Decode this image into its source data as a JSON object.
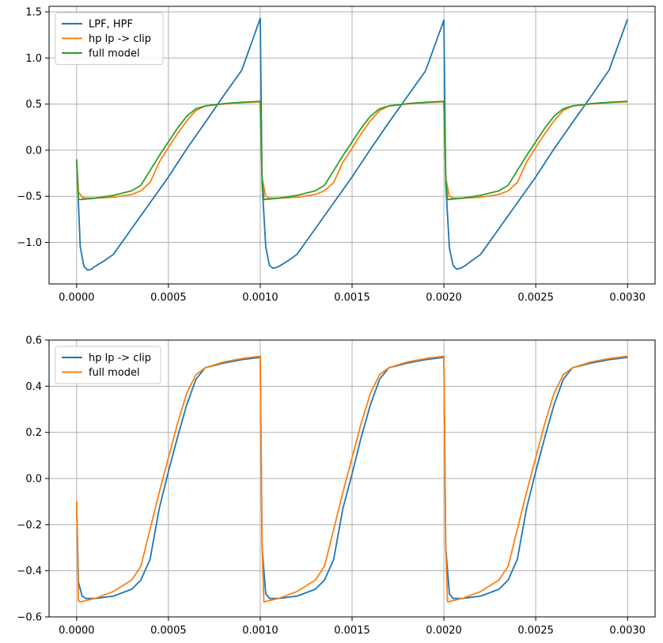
{
  "chart_data": [
    {
      "type": "line",
      "title": "",
      "xlabel": "",
      "ylabel": "",
      "xlim": [
        -0.00015,
        0.00315
      ],
      "ylim": [
        -1.45,
        1.56
      ],
      "xticks": [
        "0.0000",
        "0.0005",
        "0.0010",
        "0.0015",
        "0.0020",
        "0.0025",
        "0.0030"
      ],
      "yticks": [
        "−1.0",
        "−0.5",
        "0.0",
        "0.5",
        "1.0",
        "1.5"
      ],
      "grid": true,
      "legend_position": "upper-left",
      "series": [
        {
          "name": "LPF, HPF",
          "color": "#1f77b4",
          "x": [
            0.0,
            2e-05,
            4e-05,
            6e-05,
            8e-05,
            0.0001,
            0.00015,
            0.0002,
            0.0003,
            0.0004,
            0.0005,
            0.0006,
            0.0007,
            0.0008,
            0.0009,
            0.001,
            0.00101,
            0.00103,
            0.00105,
            0.00107,
            0.00109,
            0.00111,
            0.00115,
            0.0012,
            0.0013,
            0.0014,
            0.0015,
            0.0016,
            0.0017,
            0.0018,
            0.0019,
            0.002,
            0.00201,
            0.00203,
            0.00205,
            0.00207,
            0.00209,
            0.00211,
            0.00215,
            0.0022,
            0.0023,
            0.0024,
            0.0025,
            0.0026,
            0.0027,
            0.0028,
            0.0029,
            0.003
          ],
          "values": [
            -0.1,
            -1.05,
            -1.26,
            -1.3,
            -1.29,
            -1.26,
            -1.2,
            -1.13,
            -0.85,
            -0.57,
            -0.29,
            0.015,
            0.3,
            0.59,
            0.87,
            1.43,
            -0.35,
            -1.05,
            -1.25,
            -1.28,
            -1.27,
            -1.25,
            -1.2,
            -1.13,
            -0.85,
            -0.57,
            -0.29,
            0.01,
            0.3,
            0.58,
            0.86,
            1.41,
            -0.36,
            -1.06,
            -1.25,
            -1.29,
            -1.28,
            -1.26,
            -1.2,
            -1.13,
            -0.85,
            -0.57,
            -0.29,
            0.015,
            0.3,
            0.58,
            0.87,
            1.42
          ]
        },
        {
          "name": "hp lp -> clip",
          "color": "#ff7f0e",
          "x": [
            0.0,
            1e-05,
            3e-05,
            5e-05,
            0.0001,
            0.0002,
            0.0003,
            0.00035,
            0.0004,
            0.00045,
            0.0005,
            0.00055,
            0.0006,
            0.00065,
            0.0007,
            0.0008,
            0.0009,
            0.001,
            0.00101,
            0.00103,
            0.00105,
            0.0011,
            0.0012,
            0.0013,
            0.00135,
            0.0014,
            0.00145,
            0.0015,
            0.00155,
            0.0016,
            0.00165,
            0.0017,
            0.0018,
            0.0019,
            0.002,
            0.00201,
            0.00203,
            0.00205,
            0.0021,
            0.0022,
            0.0023,
            0.00235,
            0.0024,
            0.00245,
            0.0025,
            0.00255,
            0.0026,
            0.00265,
            0.0027,
            0.0028,
            0.0029,
            0.003
          ],
          "values": [
            -0.1,
            -0.45,
            -0.51,
            -0.52,
            -0.52,
            -0.51,
            -0.48,
            -0.44,
            -0.35,
            -0.13,
            0.03,
            0.18,
            0.32,
            0.43,
            0.48,
            0.5,
            0.515,
            0.525,
            -0.3,
            -0.5,
            -0.52,
            -0.52,
            -0.51,
            -0.48,
            -0.44,
            -0.35,
            -0.13,
            0.02,
            0.18,
            0.32,
            0.43,
            0.48,
            0.5,
            0.515,
            0.525,
            -0.3,
            -0.5,
            -0.52,
            -0.52,
            -0.51,
            -0.48,
            -0.44,
            -0.35,
            -0.13,
            0.03,
            0.18,
            0.32,
            0.43,
            0.48,
            0.5,
            0.515,
            0.525
          ]
        },
        {
          "name": "full model",
          "color": "#2ca02c",
          "x": [
            0.0,
            1e-05,
            2e-05,
            0.0001,
            0.0002,
            0.0003,
            0.00035,
            0.0004,
            0.00045,
            0.0005,
            0.00055,
            0.0006,
            0.00065,
            0.0007,
            0.0008,
            0.0009,
            0.001,
            0.00101,
            0.00102,
            0.0011,
            0.0012,
            0.0013,
            0.00135,
            0.0014,
            0.00145,
            0.0015,
            0.00155,
            0.0016,
            0.00165,
            0.0017,
            0.0018,
            0.0019,
            0.002,
            0.00201,
            0.00202,
            0.0021,
            0.0022,
            0.0023,
            0.00235,
            0.0024,
            0.00245,
            0.0025,
            0.00255,
            0.0026,
            0.00265,
            0.0027,
            0.0028,
            0.0029,
            0.003
          ],
          "values": [
            -0.1,
            -0.53,
            -0.535,
            -0.52,
            -0.49,
            -0.44,
            -0.38,
            -0.22,
            -0.06,
            0.09,
            0.24,
            0.37,
            0.45,
            0.48,
            0.505,
            0.52,
            0.53,
            -0.3,
            -0.535,
            -0.52,
            -0.49,
            -0.44,
            -0.38,
            -0.22,
            -0.06,
            0.09,
            0.24,
            0.37,
            0.45,
            0.48,
            0.505,
            0.52,
            0.53,
            -0.3,
            -0.535,
            -0.52,
            -0.49,
            -0.44,
            -0.38,
            -0.22,
            -0.06,
            0.09,
            0.24,
            0.37,
            0.45,
            0.48,
            0.505,
            0.52,
            0.53
          ]
        }
      ]
    },
    {
      "type": "line",
      "title": "",
      "xlabel": "",
      "ylabel": "",
      "xlim": [
        -0.00015,
        0.00315
      ],
      "ylim": [
        -0.6,
        0.6
      ],
      "xticks": [
        "0.0000",
        "0.0005",
        "0.0010",
        "0.0015",
        "0.0020",
        "0.0025",
        "0.0030"
      ],
      "yticks": [
        "−0.6",
        "−0.4",
        "−0.2",
        "0.0",
        "0.2",
        "0.4",
        "0.6"
      ],
      "grid": true,
      "legend_position": "upper-left",
      "series": [
        {
          "name": "hp lp -> clip",
          "color": "#1f77b4",
          "x": [
            0.0,
            1e-05,
            3e-05,
            5e-05,
            0.0001,
            0.0002,
            0.0003,
            0.00035,
            0.0004,
            0.00045,
            0.0005,
            0.00055,
            0.0006,
            0.00065,
            0.0007,
            0.0008,
            0.0009,
            0.001,
            0.00101,
            0.00103,
            0.00105,
            0.0011,
            0.0012,
            0.0013,
            0.00135,
            0.0014,
            0.00145,
            0.0015,
            0.00155,
            0.0016,
            0.00165,
            0.0017,
            0.0018,
            0.0019,
            0.002,
            0.00201,
            0.00203,
            0.00205,
            0.0021,
            0.0022,
            0.0023,
            0.00235,
            0.0024,
            0.00245,
            0.0025,
            0.00255,
            0.0026,
            0.00265,
            0.0027,
            0.0028,
            0.0029,
            0.003
          ],
          "values": [
            -0.1,
            -0.45,
            -0.51,
            -0.52,
            -0.52,
            -0.51,
            -0.48,
            -0.44,
            -0.35,
            -0.13,
            0.03,
            0.18,
            0.32,
            0.43,
            0.48,
            0.5,
            0.515,
            0.525,
            -0.3,
            -0.5,
            -0.52,
            -0.52,
            -0.51,
            -0.48,
            -0.44,
            -0.35,
            -0.13,
            0.02,
            0.18,
            0.32,
            0.43,
            0.48,
            0.5,
            0.515,
            0.525,
            -0.3,
            -0.5,
            -0.52,
            -0.52,
            -0.51,
            -0.48,
            -0.44,
            -0.35,
            -0.13,
            0.03,
            0.18,
            0.32,
            0.43,
            0.48,
            0.5,
            0.515,
            0.525
          ]
        },
        {
          "name": "full model",
          "color": "#ff7f0e",
          "x": [
            0.0,
            1e-05,
            2e-05,
            0.0001,
            0.0002,
            0.0003,
            0.00035,
            0.0004,
            0.00045,
            0.0005,
            0.00055,
            0.0006,
            0.00065,
            0.0007,
            0.0008,
            0.0009,
            0.001,
            0.00101,
            0.00102,
            0.0011,
            0.0012,
            0.0013,
            0.00135,
            0.0014,
            0.00145,
            0.0015,
            0.00155,
            0.0016,
            0.00165,
            0.0017,
            0.0018,
            0.0019,
            0.002,
            0.00201,
            0.00202,
            0.0021,
            0.0022,
            0.0023,
            0.00235,
            0.0024,
            0.00245,
            0.0025,
            0.00255,
            0.0026,
            0.00265,
            0.0027,
            0.0028,
            0.0029,
            0.003
          ],
          "values": [
            -0.1,
            -0.53,
            -0.535,
            -0.52,
            -0.49,
            -0.44,
            -0.38,
            -0.22,
            -0.06,
            0.09,
            0.24,
            0.37,
            0.45,
            0.48,
            0.505,
            0.52,
            0.53,
            -0.3,
            -0.535,
            -0.52,
            -0.49,
            -0.44,
            -0.38,
            -0.22,
            -0.06,
            0.09,
            0.24,
            0.37,
            0.45,
            0.48,
            0.505,
            0.52,
            0.53,
            -0.3,
            -0.535,
            -0.52,
            -0.49,
            -0.44,
            -0.38,
            -0.22,
            -0.06,
            0.09,
            0.24,
            0.37,
            0.45,
            0.48,
            0.505,
            0.52,
            0.53
          ]
        }
      ]
    }
  ]
}
